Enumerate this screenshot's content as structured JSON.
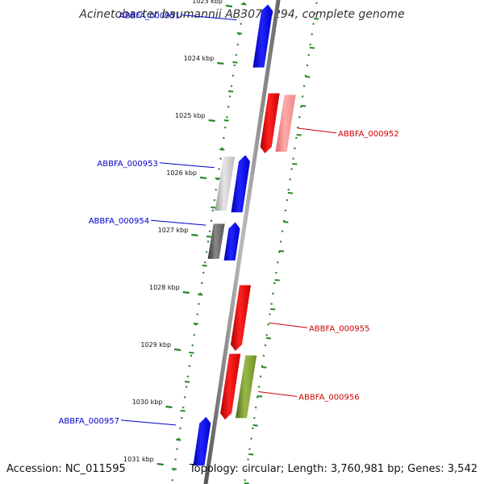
{
  "title": "Acinetobacter baumannii AB307-0294, complete genome",
  "footer": {
    "accession": "Accession: NC_011595",
    "summary": "Topology: circular; Length: 3,760,981 bp; Genes: 3,542"
  },
  "ticks": [
    {
      "label": "1023 kbp",
      "kbp": 1023
    },
    {
      "label": "1024 kbp",
      "kbp": 1024
    },
    {
      "label": "1025 kbp",
      "kbp": 1025
    },
    {
      "label": "1026 kbp",
      "kbp": 1026
    },
    {
      "label": "1027 kbp",
      "kbp": 1027
    },
    {
      "label": "1028 kbp",
      "kbp": 1028
    },
    {
      "label": "1029 kbp",
      "kbp": 1029
    },
    {
      "label": "1030 kbp",
      "kbp": 1030
    },
    {
      "label": "1031 kbp",
      "kbp": 1031
    }
  ],
  "genes": [
    {
      "name": "ABBFA_000951",
      "strand": "-",
      "start_kbp": 1023.05,
      "end_kbp": 1024.15,
      "label_color": "#0000cc"
    },
    {
      "name": "ABBFA_000952",
      "strand": "+",
      "start_kbp": 1024.6,
      "end_kbp": 1025.65,
      "label_color": "#cc0000"
    },
    {
      "name": "ABBFA_000953",
      "strand": "-",
      "start_kbp": 1025.68,
      "end_kbp": 1026.68,
      "label_color": "#0000cc"
    },
    {
      "name": "ABBFA_000954",
      "strand": "-",
      "start_kbp": 1026.85,
      "end_kbp": 1027.52,
      "label_color": "#0000cc"
    },
    {
      "name": "ABBFA_000955",
      "strand": "+",
      "start_kbp": 1027.95,
      "end_kbp": 1029.1,
      "label_color": "#cc0000"
    },
    {
      "name": "ABBFA_000956",
      "strand": "+",
      "start_kbp": 1029.15,
      "end_kbp": 1030.3,
      "label_color": "#cc0000"
    },
    {
      "name": "ABBFA_000957",
      "strand": "-",
      "start_kbp": 1030.25,
      "end_kbp": 1031.1,
      "label_color": "#0000cc"
    }
  ],
  "colors": {
    "forward": "#ee0000",
    "reverse": "#0000ee",
    "backbone": "#888888",
    "tick": "#228822",
    "forward_shade": "#ee7777",
    "reverse_shade_light": "#bbbbbb",
    "reverse_shade_dark": "#555555",
    "olive": "#6f8f2a"
  }
}
